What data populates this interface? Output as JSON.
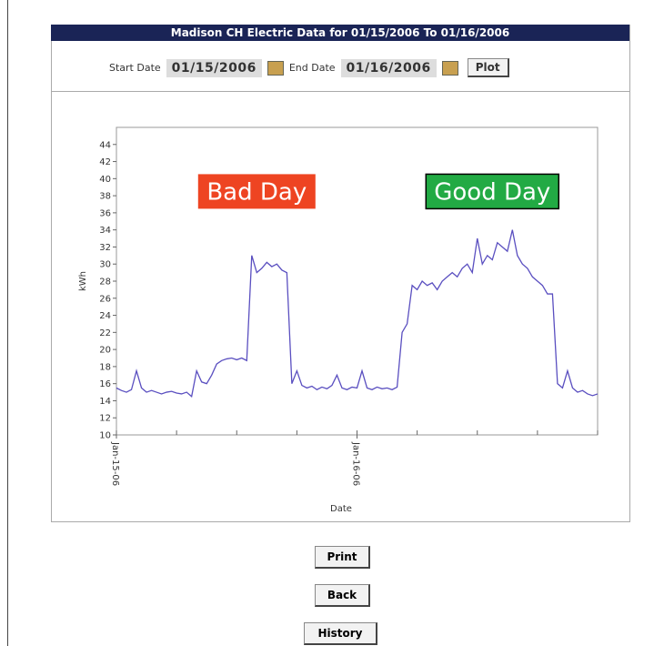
{
  "header": {
    "title": "Madison CH Electric Data for 01/15/2006 To 01/16/2006"
  },
  "form": {
    "start_label": "Start Date",
    "start_value": "01/15/2006",
    "end_label": "End Date",
    "end_value": "01/16/2006",
    "plot_button": "Plot"
  },
  "chart_data": {
    "type": "line",
    "x_label": "Date",
    "y_label": "kWh",
    "series": [
      {
        "name": "kWh",
        "color": "#5a4fc0",
        "values": [
          15.5,
          15.2,
          15,
          15.3,
          17.5,
          15.5,
          15,
          15.2,
          15,
          14.8,
          15,
          15.1,
          14.9,
          14.8,
          15,
          14.5,
          17.5,
          16.2,
          16,
          17,
          18.3,
          18.7,
          18.9,
          19,
          18.8,
          19,
          18.7,
          31,
          29,
          29.5,
          30.2,
          29.7,
          30,
          29.3,
          29,
          16,
          17.5,
          15.8,
          15.5,
          15.7,
          15.3,
          15.6,
          15.4,
          15.8,
          17,
          15.5,
          15.3,
          15.6,
          15.5,
          17.5,
          15.5,
          15.3,
          15.6,
          15.4,
          15.5,
          15.3,
          15.6,
          22,
          23,
          27.5,
          27,
          28,
          27.5,
          27.8,
          27,
          28,
          28.5,
          29,
          28.5,
          29.5,
          30,
          29,
          33,
          30,
          31,
          30.5,
          32.5,
          32,
          31.5,
          34,
          31,
          30,
          29.5,
          28.5,
          28,
          27.5,
          26.5,
          26.5,
          16,
          15.5,
          17.5,
          15.5,
          15,
          15.2,
          14.8,
          14.6,
          14.8
        ]
      }
    ],
    "xlim": [
      0,
      96
    ],
    "xticks": [
      {
        "value": 0,
        "label": "Jan-15-06"
      },
      {
        "value": 48,
        "label": "Jan-16-06"
      }
    ],
    "xminorticks": [
      12,
      24,
      36,
      60,
      72,
      84,
      96
    ],
    "ylim": [
      10,
      46
    ],
    "yticks": [
      10,
      12,
      14,
      16,
      18,
      20,
      22,
      24,
      26,
      28,
      30,
      32,
      34,
      36,
      38,
      40,
      42,
      44
    ],
    "annotations": [
      {
        "text": "Bad Day",
        "color": "#ee4422",
        "x": 28,
        "y": 38.5
      },
      {
        "text": "Good Day",
        "color": "#22aa44",
        "x": 75,
        "y": 38.5
      }
    ]
  },
  "buttons": [
    "Print",
    "Back",
    "History"
  ]
}
